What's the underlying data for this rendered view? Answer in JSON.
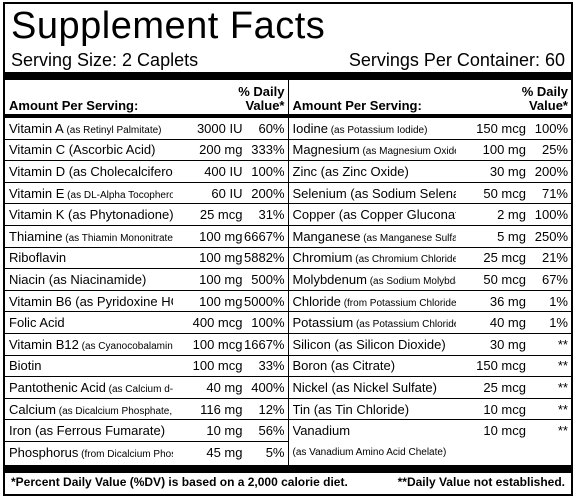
{
  "title": "Supplement Facts",
  "serving_size": "Serving Size: 2 Caplets",
  "servings_per_container": "Servings Per Container: 60",
  "header": {
    "amount_per_serving": "Amount Per Serving:",
    "daily_value_line1": "% Daily",
    "daily_value_line2": "Value*"
  },
  "left": [
    {
      "name": "Vitamin A",
      "source": " (as Retinyl Palmitate)",
      "amount": "3000 IU",
      "dv": "60%"
    },
    {
      "name": "Vitamin C (Ascorbic Acid)",
      "source": "",
      "amount": "200 mg",
      "dv": "333%"
    },
    {
      "name": "Vitamin D (as Cholecalciferol)",
      "source": "",
      "amount": "400 IU",
      "dv": "100%"
    },
    {
      "name": "Vitamin E",
      "source": " (as DL-Alpha Tocopherol Acetate)",
      "amount": "60 IU",
      "dv": "200%"
    },
    {
      "name": "Vitamin K (as Phytonadione)",
      "source": "",
      "amount": "25 mcg",
      "dv": "31%"
    },
    {
      "name": "Thiamine",
      "source": " (as Thiamin Mononitrate)",
      "amount": "100 mg",
      "dv": "6667%"
    },
    {
      "name": "Riboflavin",
      "source": "",
      "amount": "100 mg",
      "dv": "5882%"
    },
    {
      "name": "Niacin (as Niacinamide)",
      "source": "",
      "amount": "100 mg",
      "dv": "500%"
    },
    {
      "name": "Vitamin B6 (as Pyridoxine HCl)",
      "source": "",
      "amount": "100 mg",
      "dv": "5000%"
    },
    {
      "name": "Folic Acid",
      "source": "",
      "amount": "400 mcg",
      "dv": "100%"
    },
    {
      "name": "Vitamin B12",
      "source": " (as Cyanocobalamin)",
      "amount": "100 mcg",
      "dv": "1667%"
    },
    {
      "name": "Biotin",
      "source": "",
      "amount": "100 mcg",
      "dv": "33%"
    },
    {
      "name": "Pantothenic Acid",
      "source": " (as Calcium d-Pantothenate)",
      "amount": "40 mg",
      "dv": "400%"
    },
    {
      "name": "Calcium",
      "source": " (as Dicalcium Phosphate, Calcium Carbonate)",
      "amount": "116 mg",
      "dv": "12%"
    },
    {
      "name": "Iron (as Ferrous Fumarate)",
      "source": "",
      "amount": "10 mg",
      "dv": "56%"
    },
    {
      "name": "Phosphorus",
      "source": " (from Dicalcium Phosphate)",
      "amount": "45 mg",
      "dv": "5%"
    }
  ],
  "right": [
    {
      "name": "Iodine",
      "source": " (as Potassium Iodide)",
      "amount": "150 mcg",
      "dv": "100%"
    },
    {
      "name": "Magnesium",
      "source": " (as Magnesium Oxide)",
      "amount": "100 mg",
      "dv": "25%"
    },
    {
      "name": "Zinc (as Zinc Oxide)",
      "source": "",
      "amount": "30 mg",
      "dv": "200%"
    },
    {
      "name": "Selenium (as Sodium Selenate)",
      "source": "",
      "amount": "50 mcg",
      "dv": "71%"
    },
    {
      "name": "Copper (as Copper Gluconate)",
      "source": "",
      "amount": "2 mg",
      "dv": "100%"
    },
    {
      "name": "Manganese",
      "source": " (as Manganese Sulfate)",
      "amount": "5 mg",
      "dv": "250%"
    },
    {
      "name": "Chromium",
      "source": " (as Chromium Chloride)",
      "amount": "25 mcg",
      "dv": "21%"
    },
    {
      "name": "Molybdenum",
      "source": " (as Sodium Molybdate)",
      "amount": "50 mcg",
      "dv": "67%"
    },
    {
      "name": "Chloride",
      "source": " (from Potassium Chloride)",
      "amount": "36 mg",
      "dv": "1%"
    },
    {
      "name": "Potassium",
      "source": " (as Potassium Chloride)",
      "amount": "40 mg",
      "dv": "1%"
    },
    {
      "name": "Silicon (as Silicon Dioxide)",
      "source": "",
      "amount": "30 mg",
      "dv": "**"
    },
    {
      "name": "Boron (as Citrate)",
      "source": "",
      "amount": "150 mcg",
      "dv": "**"
    },
    {
      "name": "Nickel (as Nickel Sulfate)",
      "source": "",
      "amount": "25 mcg",
      "dv": "**"
    },
    {
      "name": "Tin (as Tin Chloride)",
      "source": "",
      "amount": "10 mcg",
      "dv": "**"
    },
    {
      "name": "Vanadium",
      "source": "",
      "sub": "(as Vanadium Amino Acid Chelate)",
      "amount": "10 mcg",
      "dv": "**"
    }
  ],
  "footnote_left": "*Percent Daily Value (%DV) is based on a 2,000 calorie diet.",
  "footnote_right": "**Daily Value not established."
}
